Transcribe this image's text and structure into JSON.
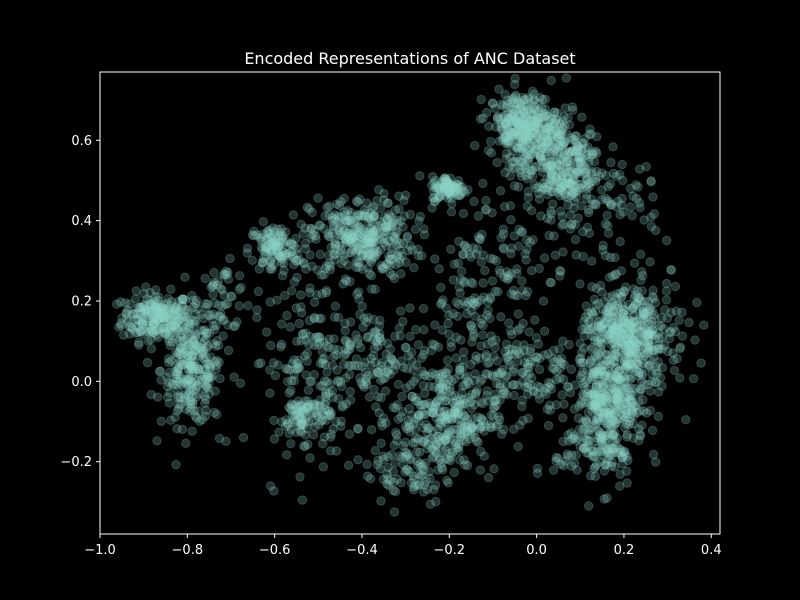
{
  "colors": {
    "background": "#000000",
    "axes_frame": "#ffffff",
    "text": "#ffffff",
    "marker": "#8dd3c7"
  },
  "chart_data": {
    "type": "scatter",
    "title": "Encoded Representations of ANC Dataset",
    "xlabel": "",
    "ylabel": "",
    "xlim": [
      -1.0,
      0.42
    ],
    "ylim": [
      -0.38,
      0.77
    ],
    "x_ticks": [
      -1.0,
      -0.8,
      -0.6,
      -0.4,
      -0.2,
      0.0,
      0.2,
      0.4
    ],
    "x_tick_labels": [
      "−1.0",
      "−0.8",
      "−0.6",
      "−0.4",
      "−0.2",
      "0.0",
      "0.2",
      "0.4"
    ],
    "y_ticks": [
      -0.2,
      0.0,
      0.2,
      0.4,
      0.6
    ],
    "y_tick_labels": [
      "−0.2",
      "0.0",
      "0.2",
      "0.4",
      "0.6"
    ],
    "grid": false,
    "legend": "none",
    "marker_alpha": 0.25,
    "clusters": [
      {
        "cx": -0.87,
        "cy": 0.16,
        "sx": 0.04,
        "sy": 0.03,
        "n": 220
      },
      {
        "cx": -0.79,
        "cy": 0.03,
        "sx": 0.035,
        "sy": 0.07,
        "n": 260
      },
      {
        "cx": -0.72,
        "cy": 0.21,
        "sx": 0.03,
        "sy": 0.04,
        "n": 50
      },
      {
        "cx": -0.6,
        "cy": 0.33,
        "sx": 0.03,
        "sy": 0.03,
        "n": 110
      },
      {
        "cx": -0.4,
        "cy": 0.36,
        "sx": 0.06,
        "sy": 0.05,
        "n": 320
      },
      {
        "cx": -0.5,
        "cy": 0.05,
        "sx": 0.08,
        "sy": 0.11,
        "n": 180
      },
      {
        "cx": -0.53,
        "cy": -0.09,
        "sx": 0.03,
        "sy": 0.03,
        "n": 90
      },
      {
        "cx": -0.35,
        "cy": 0.05,
        "sx": 0.08,
        "sy": 0.08,
        "n": 120
      },
      {
        "cx": -0.21,
        "cy": -0.09,
        "sx": 0.06,
        "sy": 0.07,
        "n": 330
      },
      {
        "cx": -0.3,
        "cy": -0.23,
        "sx": 0.05,
        "sy": 0.04,
        "n": 60
      },
      {
        "cx": -0.2,
        "cy": 0.48,
        "sx": 0.02,
        "sy": 0.015,
        "n": 90
      },
      {
        "cx": -0.03,
        "cy": 0.64,
        "sx": 0.04,
        "sy": 0.04,
        "n": 280
      },
      {
        "cx": 0.05,
        "cy": 0.54,
        "sx": 0.05,
        "sy": 0.06,
        "n": 330
      },
      {
        "cx": -0.08,
        "cy": 0.32,
        "sx": 0.08,
        "sy": 0.08,
        "n": 110
      },
      {
        "cx": -0.02,
        "cy": 0.02,
        "sx": 0.05,
        "sy": 0.06,
        "n": 110
      },
      {
        "cx": 0.2,
        "cy": 0.11,
        "sx": 0.05,
        "sy": 0.06,
        "n": 420
      },
      {
        "cx": 0.17,
        "cy": -0.05,
        "sx": 0.04,
        "sy": 0.05,
        "n": 260
      },
      {
        "cx": 0.14,
        "cy": -0.17,
        "sx": 0.05,
        "sy": 0.05,
        "n": 130
      },
      {
        "cx": 0.16,
        "cy": 0.42,
        "sx": 0.06,
        "sy": 0.06,
        "n": 70
      },
      {
        "cx": 0.28,
        "cy": 0.1,
        "sx": 0.04,
        "sy": 0.08,
        "n": 60
      },
      {
        "cx": -0.12,
        "cy": 0.15,
        "sx": 0.06,
        "sy": 0.06,
        "n": 70
      }
    ]
  }
}
